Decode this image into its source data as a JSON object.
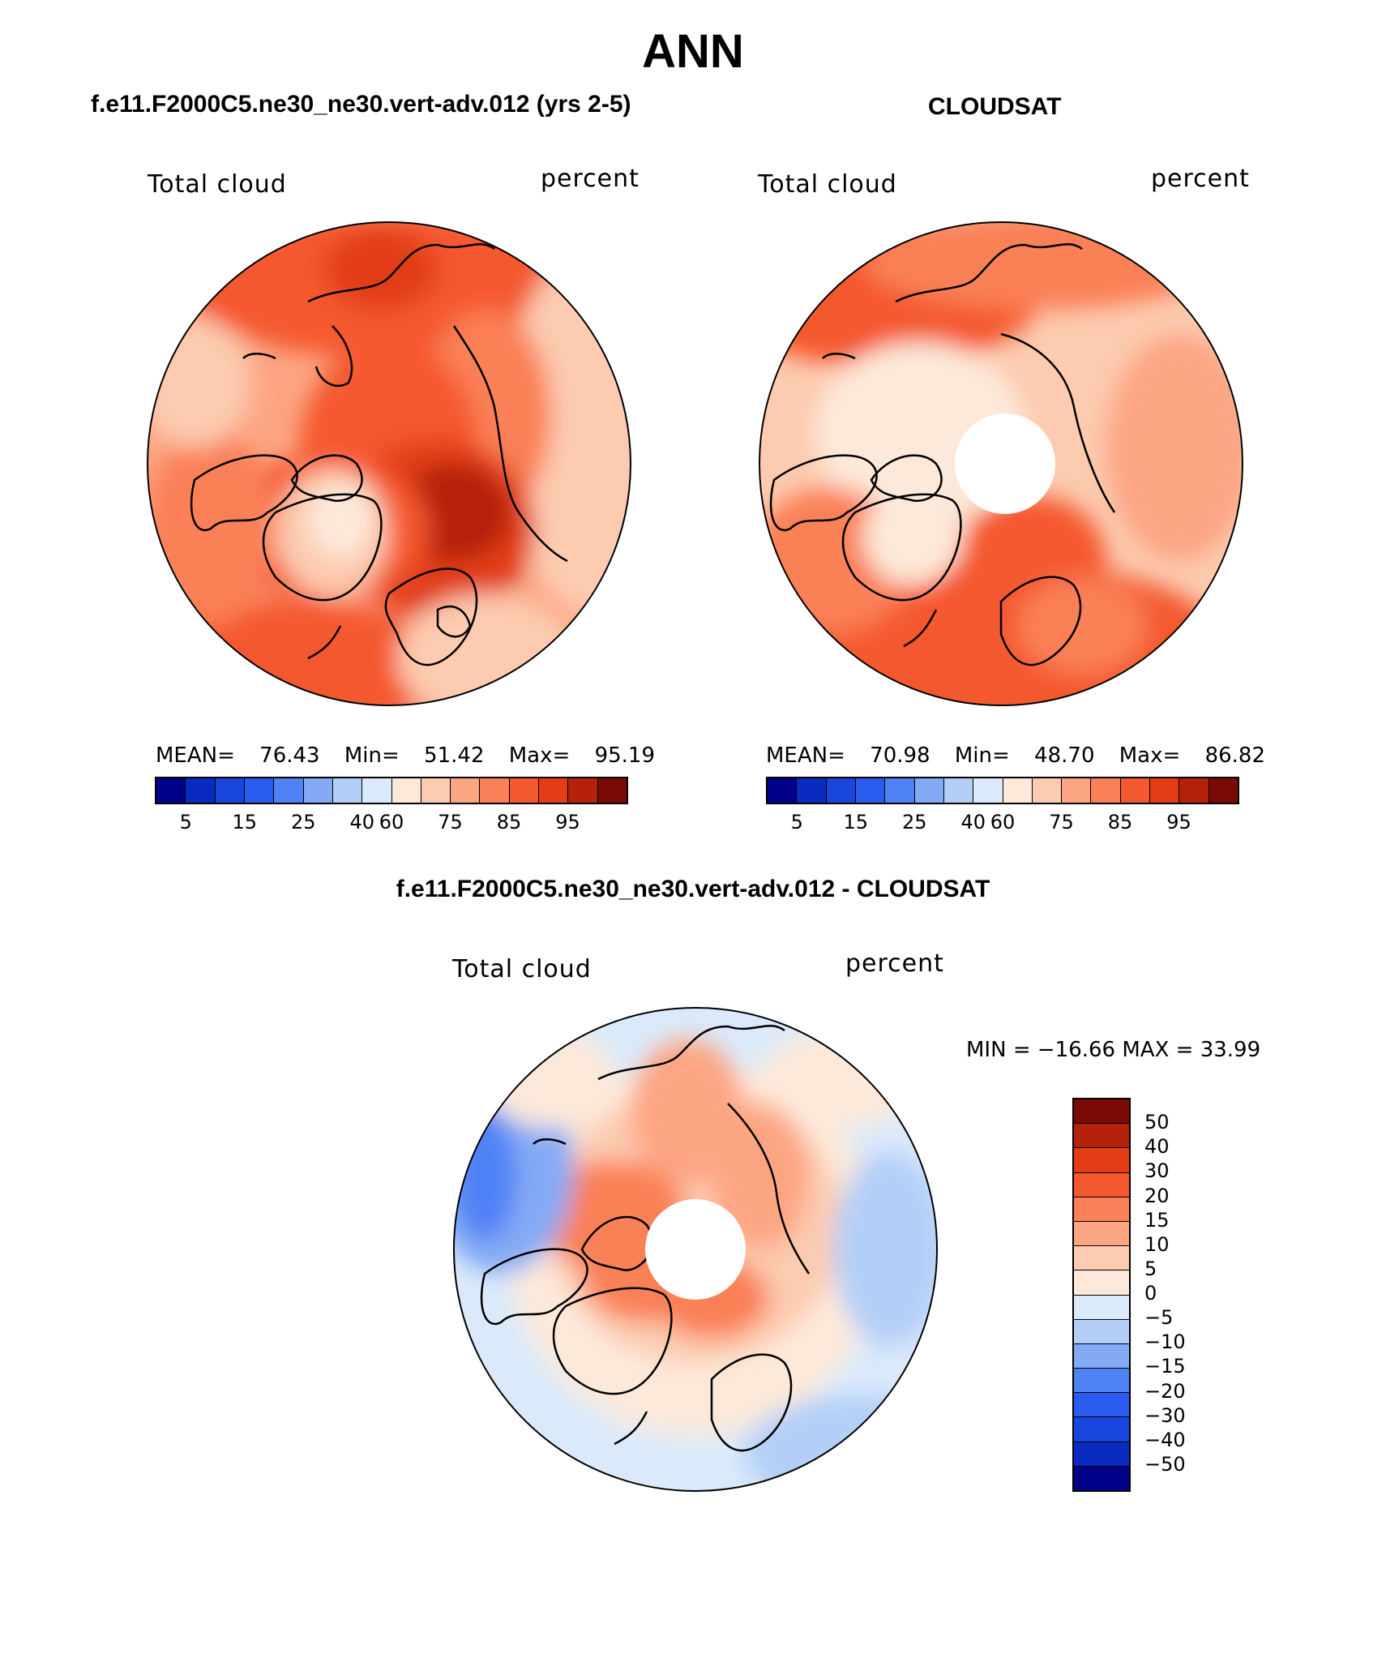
{
  "title": "ANN",
  "panels": [
    {
      "id": "model",
      "heading": "f.e11.F2000C5.ne30_ne30.vert-adv.012 (yrs 2-5)",
      "variable": "Total cloud",
      "units": "percent",
      "stats": {
        "mean_label": "MEAN=",
        "mean": "76.43",
        "min_label": "Min=",
        "min": "51.42",
        "max_label": "Max=",
        "max": "95.19"
      }
    },
    {
      "id": "obs",
      "heading": "CLOUDSAT",
      "variable": "Total cloud",
      "units": "percent",
      "stats": {
        "mean_label": "MEAN=",
        "mean": "70.98",
        "min_label": "Min=",
        "min": "48.70",
        "max_label": "Max=",
        "max": "86.82"
      }
    },
    {
      "id": "diff",
      "heading": "f.e11.F2000C5.ne30_ne30.vert-adv.012 - CLOUDSAT",
      "variable": "Total cloud",
      "units": "percent",
      "stats_text": "MIN = −16.66 MAX =   33.99"
    }
  ],
  "colorbar_abs": {
    "colors": [
      "#00008b",
      "#0a2bbf",
      "#1845db",
      "#2a5cf0",
      "#4f82f5",
      "#84aaf5",
      "#b4cff7",
      "#dbeafb",
      "#fde9d9",
      "#fccbb0",
      "#fca583",
      "#fa8057",
      "#f4582f",
      "#e23d14",
      "#b5220c",
      "#7b0a04"
    ],
    "tick_labels": [
      "5",
      "15",
      "25",
      "40",
      "60",
      "75",
      "85",
      "95"
    ]
  },
  "colorbar_diff": {
    "colors": [
      "#7b0a04",
      "#b5220c",
      "#e23d14",
      "#f4582f",
      "#fa8057",
      "#fca583",
      "#fccbb0",
      "#fde9d9",
      "#dbeafb",
      "#b4cff7",
      "#84aaf5",
      "#4f82f5",
      "#2a5cf0",
      "#1845db",
      "#0a2bbf",
      "#00008b"
    ],
    "tick_labels": [
      "50",
      "40",
      "30",
      "20",
      "15",
      "10",
      "5",
      "0",
      "−5",
      "−10",
      "−15",
      "−20",
      "−30",
      "−40",
      "−50"
    ]
  }
}
